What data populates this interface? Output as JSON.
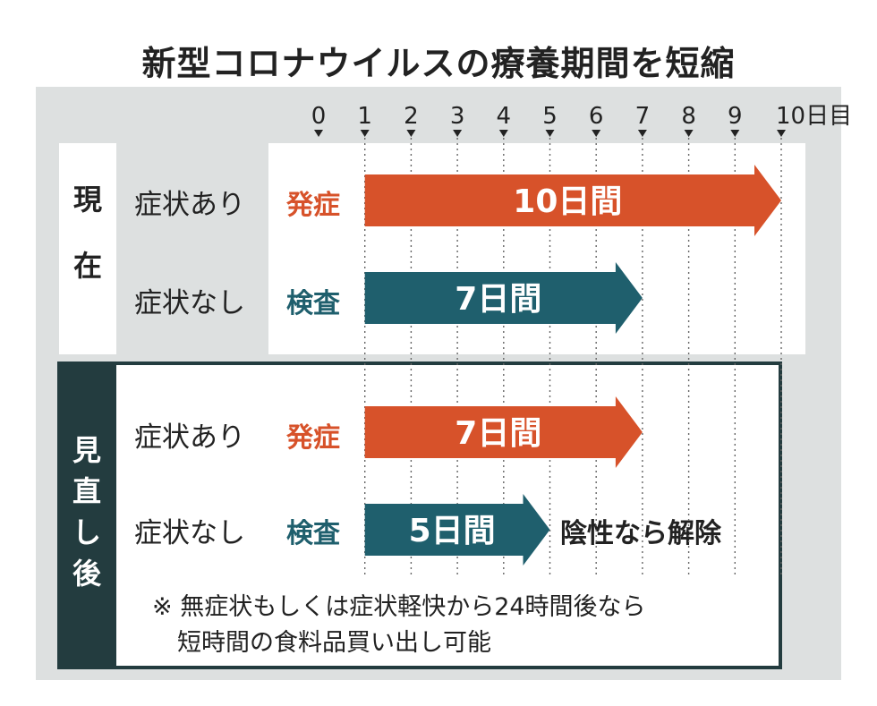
{
  "title": "新型コロナウイルスの療養期間を短縮",
  "sections": {
    "current": {
      "label_line1": "現",
      "label_line2": "在"
    },
    "revised": {
      "label_line1": "見",
      "label_line2": "直",
      "label_line3": "し",
      "label_line4": "後"
    }
  },
  "rows": [
    {
      "group": "現在",
      "label": "症状あり",
      "start": "発症",
      "duration_label": "10日間"
    },
    {
      "group": "現在",
      "label": "症状なし",
      "start": "検査",
      "duration_label": "7日間"
    },
    {
      "group": "見直し後",
      "label": "症状あり",
      "start": "発症",
      "duration_label": "7日間"
    },
    {
      "group": "見直し後",
      "label": "症状なし",
      "start": "検査",
      "duration_label": "5日間",
      "result": "陰性なら解除"
    }
  ],
  "note_line1": "※ 無症状もしくは症状軽快から24時間後なら",
  "note_line2": "短時間の食料品買い出し可能",
  "axis_unit": "日目",
  "colors": {
    "onset": "#d7522a",
    "test": "#1f5f6d",
    "frame": "#233c3f",
    "panel": "#dde0e0"
  },
  "chart_data": {
    "type": "bar",
    "orientation": "horizontal",
    "title": "新型コロナウイルスの療養期間を短縮",
    "x_ticks": [
      0,
      1,
      2,
      3,
      4,
      5,
      6,
      7,
      8,
      9,
      10
    ],
    "x_unit": "日目",
    "xlim": [
      0,
      10
    ],
    "bars": [
      {
        "group": "現在",
        "row": "症状あり",
        "start_label": "発症",
        "from": 0,
        "to": 10,
        "value": 10,
        "label": "10日間",
        "color": "#d7522a"
      },
      {
        "group": "現在",
        "row": "症状なし",
        "start_label": "検査",
        "from": 0,
        "to": 7,
        "value": 7,
        "label": "7日間",
        "color": "#1f5f6d"
      },
      {
        "group": "見直し後",
        "row": "症状あり",
        "start_label": "発症",
        "from": 0,
        "to": 7,
        "value": 7,
        "label": "7日間",
        "color": "#d7522a"
      },
      {
        "group": "見直し後",
        "row": "症状なし",
        "start_label": "検査",
        "from": 0,
        "to": 5,
        "value": 5,
        "label": "5日間",
        "color": "#1f5f6d",
        "annotation": "陰性なら解除"
      }
    ]
  }
}
